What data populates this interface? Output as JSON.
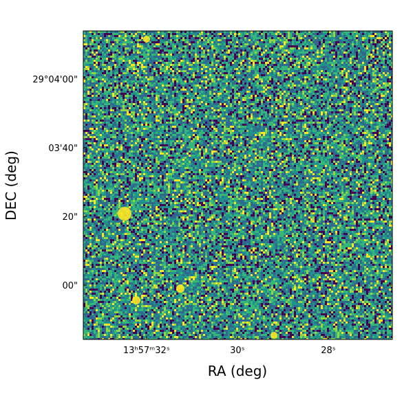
{
  "chart_data": {
    "type": "image",
    "xlabel": "RA (deg)",
    "ylabel": "DEC (deg)",
    "xlim": [
      33.39,
      26.59
    ],
    "xticks": [
      {
        "value": 32,
        "label": "13ʰ57ᵐ32ˢ"
      },
      {
        "value": 30,
        "label": "30ˢ"
      },
      {
        "value": 28,
        "label": "28ˢ"
      }
    ],
    "ylim": [
      -15.8,
      74
    ],
    "yticks": [
      {
        "value": 60,
        "label": "29°04'00\""
      },
      {
        "value": 40,
        "label": "03'40\""
      },
      {
        "value": 20,
        "label": "20\""
      },
      {
        "value": 0,
        "label": "00\""
      }
    ],
    "colors": [
      "#440154",
      "#31688e",
      "#21918c",
      "#35b779",
      "#90d743",
      "#fde725"
    ]
  }
}
